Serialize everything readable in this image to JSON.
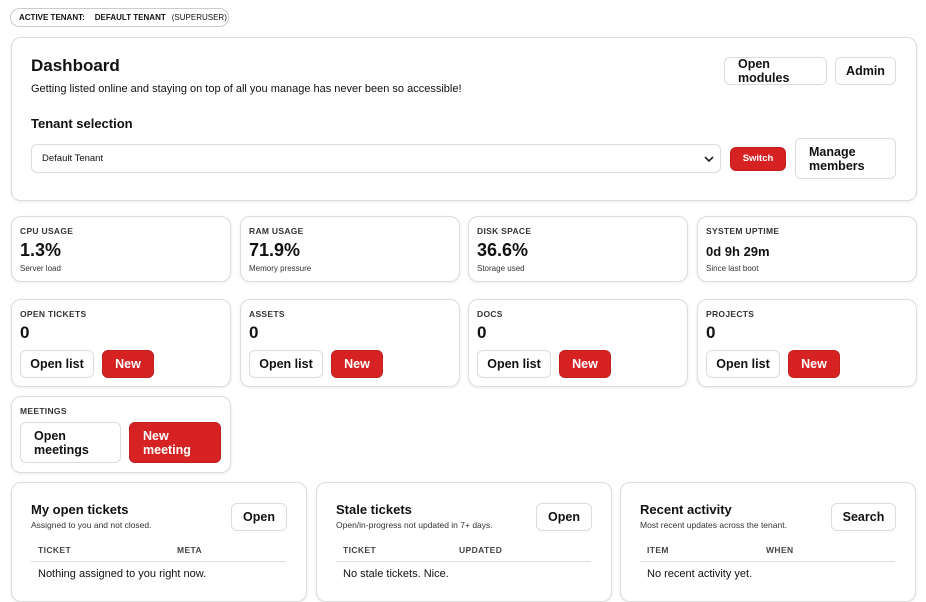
{
  "tenant_badge": {
    "label": "ACTIVE TENANT:",
    "tenant": "DEFAULT TENANT",
    "role": "(SUPERUSER)"
  },
  "header": {
    "title": "Dashboard",
    "subtitle": "Getting listed online and staying on top of all you manage has never been so accessible!",
    "buttons": [
      "Open modules",
      "Admin"
    ]
  },
  "tenant_selection": {
    "title": "Tenant selection",
    "selected": "Default Tenant",
    "switch": "Switch",
    "manage": "Manage members"
  },
  "stats": [
    {
      "label": "CPU USAGE",
      "value": "1.3%",
      "note": "Server load"
    },
    {
      "label": "RAM USAGE",
      "value": "71.9%",
      "note": "Memory pressure"
    },
    {
      "label": "DISK SPACE",
      "value": "36.6%",
      "note": "Storage used"
    },
    {
      "label": "SYSTEM UPTIME",
      "value": "0d 9h 29m",
      "note": "Since last boot"
    }
  ],
  "counters": [
    {
      "label": "OPEN TICKETS",
      "value": 0,
      "actions": [
        "Open list",
        "New"
      ]
    },
    {
      "label": "ASSETS",
      "value": 0,
      "actions": [
        "Open list",
        "New"
      ]
    },
    {
      "label": "DOCS",
      "value": 0,
      "actions": [
        "Open list",
        "New"
      ]
    },
    {
      "label": "PROJECTS",
      "value": 0,
      "actions": [
        "Open list",
        "New"
      ]
    }
  ],
  "meetings": {
    "label": "MEETINGS",
    "actions": [
      "Open meetings",
      "New meeting"
    ]
  },
  "panels": [
    {
      "title": "My open tickets",
      "subtitle": "Assigned to you and not closed.",
      "action": "Open",
      "columns": [
        "TICKET",
        "META"
      ],
      "empty": "Nothing assigned to you right now."
    },
    {
      "title": "Stale tickets",
      "subtitle": "Open/in-progress not updated in 7+ days.",
      "action": "Open",
      "columns": [
        "TICKET",
        "UPDATED"
      ],
      "empty": "No stale tickets. Nice."
    },
    {
      "title": "Recent activity",
      "subtitle": "Most recent updates across the tenant.",
      "action": "Search",
      "columns": [
        "ITEM",
        "WHEN"
      ],
      "empty": "No recent activity yet."
    }
  ]
}
